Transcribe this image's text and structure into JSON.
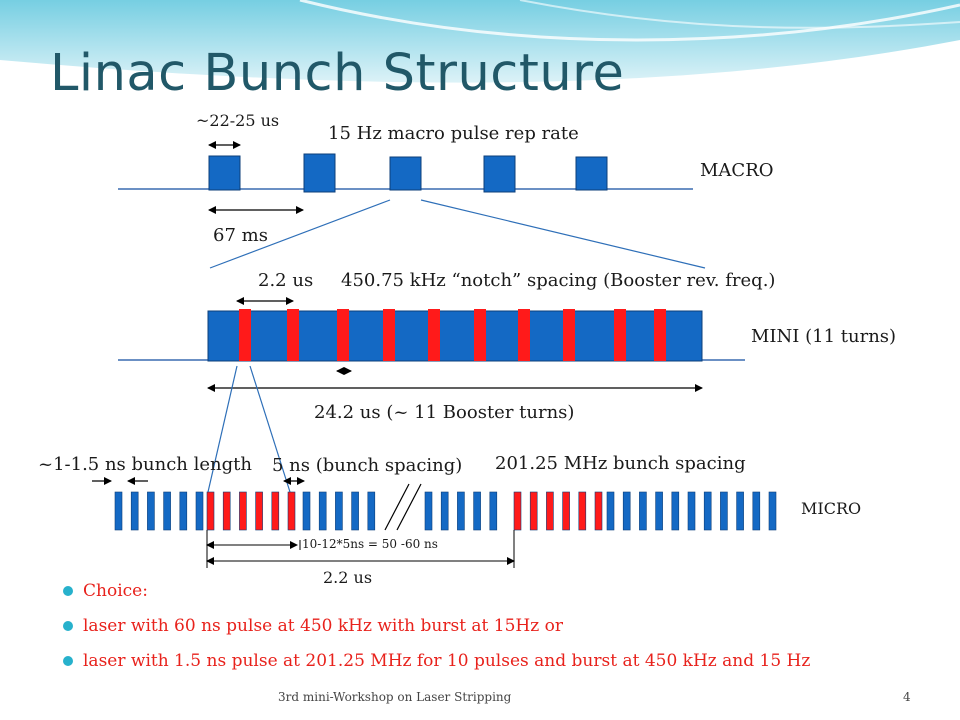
{
  "slide": {
    "title": "Linac Bunch Structure",
    "colors": {
      "title": "#215868",
      "blue_block": "#1469c4",
      "red_bar": "#ff1a1a",
      "bullet_text": "#e8221c",
      "bullet_dot": "#27b1cc"
    }
  },
  "macro": {
    "duration_label": "~22-25 us",
    "rate_label": "15 Hz  macro pulse rep rate",
    "row_label": "MACRO",
    "period_label": "67 ms"
  },
  "mini": {
    "notch_width_label": "2.2 us",
    "spacing_label": "450.75 kHz “notch” spacing (Booster rev. freq.)",
    "row_label": "MINI (11 turns)",
    "total_label": "24.2 us  (~ 11 Booster turns)"
  },
  "micro": {
    "bunch_length_label": "~1-1.5 ns bunch length",
    "bunch_spacing_label": "5 ns (bunch spacing)",
    "freq_label": "201.25 MHz bunch spacing",
    "row_label": "MICRO",
    "group_label": "10-12*5ns = 50 -60 ns",
    "gap_label": "2.2 us"
  },
  "bullets": [
    "Choice:",
    "laser with 60 ns pulse at 450 kHz  with burst at 15Hz or",
    "laser with 1.5 ns pulse at 201.25 MHz for 10 pulses and burst at 450 kHz and 15 Hz"
  ],
  "footer": {
    "text": "3rd mini-Workshop on Laser Stripping",
    "page": "4"
  }
}
